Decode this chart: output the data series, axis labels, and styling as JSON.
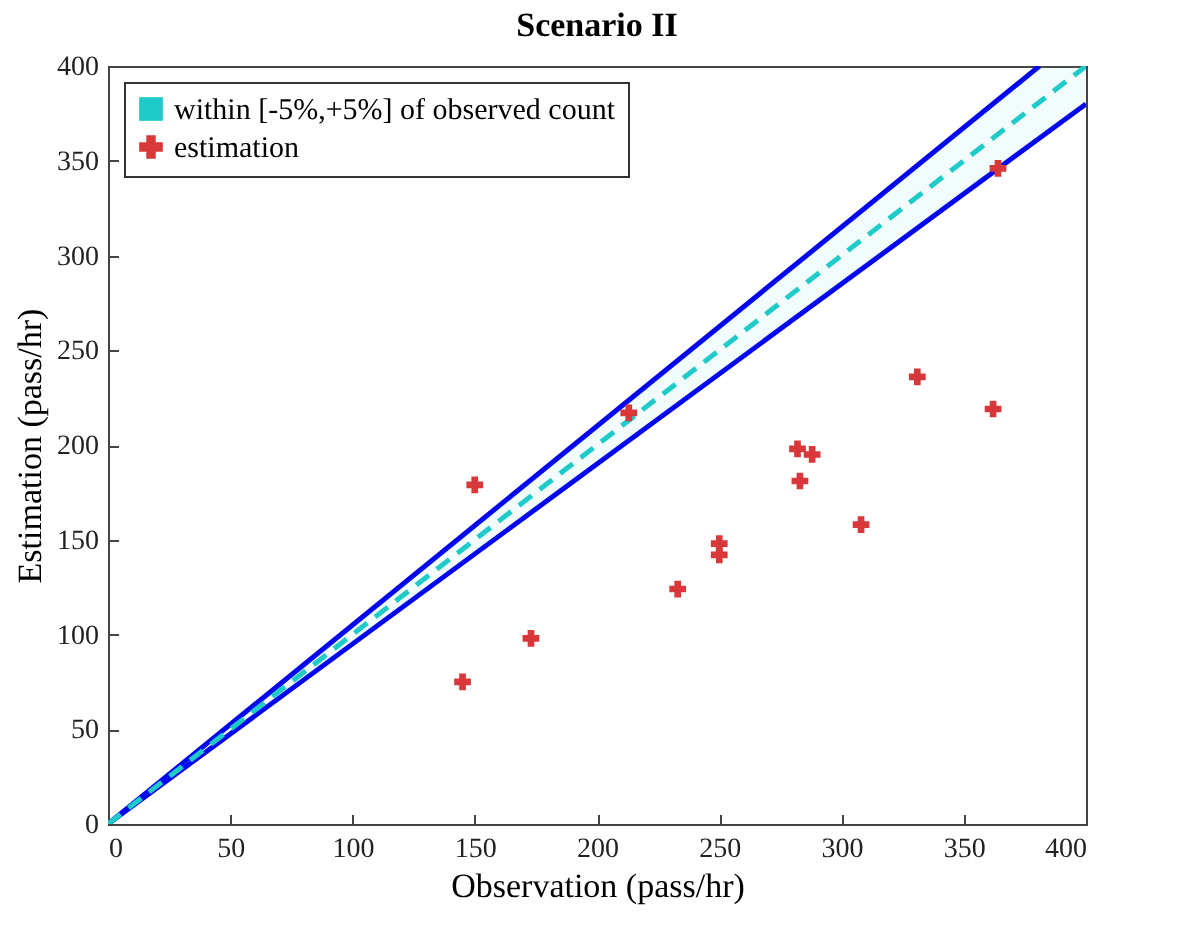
{
  "chart_data": {
    "type": "scatter",
    "title": "Scenario II",
    "xlabel": "Observation (pass/hr)",
    "ylabel": "Estimation (pass/hr)",
    "xlim": [
      0,
      400
    ],
    "ylim": [
      0,
      400
    ],
    "xticks": [
      0,
      50,
      100,
      150,
      200,
      250,
      300,
      350,
      400
    ],
    "yticks": [
      0,
      50,
      100,
      150,
      200,
      250,
      300,
      350,
      400
    ],
    "grid": false,
    "legend": "top left",
    "series": [
      {
        "type": "line",
        "marker": "none",
        "color": "#0000ee",
        "x": [
          0,
          400
        ],
        "values": [
          0,
          380
        ]
      },
      {
        "type": "line",
        "marker": "none",
        "color": "#0000ee",
        "x": [
          0,
          381
        ],
        "values": [
          0,
          400
        ]
      },
      {
        "type": "line",
        "marker": "none",
        "name": "within [-5%,+5%] of observed count",
        "color": "#1ecbc8",
        "line_style": "dashed",
        "x": [
          0,
          381,
          400
        ],
        "values": [
          0,
          381,
          400
        ],
        "lower": [
          0,
          362,
          380
        ],
        "upper": [
          0,
          400,
          400
        ]
      },
      {
        "marker": "cross",
        "name": "estimation",
        "color": "#d9383a",
        "x": [
          145,
          150,
          173,
          213,
          233,
          250,
          250,
          282,
          283,
          288,
          308,
          331,
          362,
          364
        ],
        "values": [
          75,
          179,
          98,
          217,
          124,
          142,
          148,
          198,
          181,
          195,
          158,
          236,
          219,
          346
        ]
      }
    ]
  }
}
